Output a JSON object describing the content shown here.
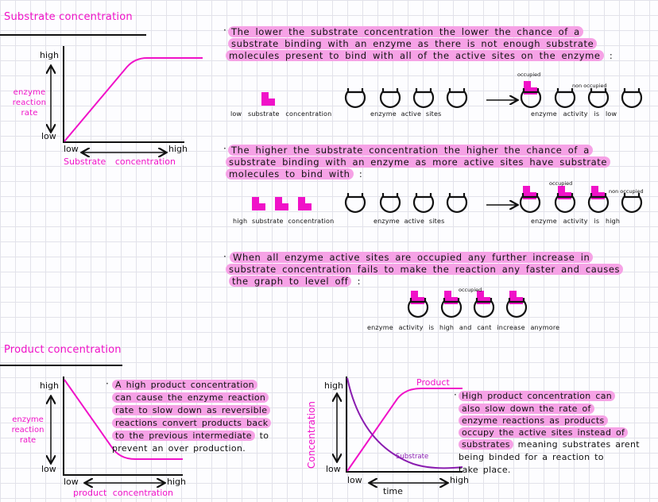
{
  "colors": {
    "accent": "#f012c8",
    "highlight": "#f6a2e6",
    "substrate_curve": "#8a1db0"
  },
  "section1": {
    "title": "Substrate concentration",
    "graph": {
      "y_high": "high",
      "y_low": "low",
      "y_label": [
        "enzyme",
        "reaction",
        "rate"
      ],
      "x_low": "low",
      "x_high": "high",
      "x_label": "Substrate concentration"
    },
    "para1": [
      "The lower the substrate concentration the lower the chance of a",
      "substrate binding with an enzyme as there is not enough substrate",
      "molecules present to bind with all of the active sites on the enzyme"
    ],
    "para1_end": ":",
    "row1": {
      "left_label": "low substrate concentration",
      "middle_label": "enzyme active sites",
      "right_label": "enzyme activity is low",
      "occupied_label": "occupied",
      "non_occupied_label": "non occupied",
      "substrate_count": 1,
      "result_occupied": [
        true,
        false,
        false,
        false
      ]
    },
    "para2": [
      "The higher the substrate concentration the higher the chance of a",
      "substrate binding with an enzyme as more active sites have substrate",
      "molecules to bind with"
    ],
    "para2_end": ":",
    "row2": {
      "left_label": "high substrate concentration",
      "middle_label": "enzyme active sites",
      "right_label": "enzyme activity is high",
      "occupied_label": "occupied",
      "non_occupied_label": "non occupied",
      "substrate_count": 3,
      "result_occupied": [
        true,
        true,
        true,
        false
      ]
    },
    "para3": [
      "When all enzyme active sites are occupied any further increase in",
      "substrate concentration fails to make the reaction any faster and causes",
      "the graph to level off"
    ],
    "para3_end": ":",
    "row3": {
      "occupied_label": "occupied",
      "label": "enzyme activity is high and cant increase anymore",
      "result_occupied": [
        true,
        true,
        true,
        true
      ]
    }
  },
  "section2": {
    "title": "Product concentration",
    "graph1": {
      "y_high": "high",
      "y_low": "low",
      "y_label": [
        "enzyme",
        "reaction",
        "rate"
      ],
      "x_low": "low",
      "x_high": "high",
      "x_label": "product concentration"
    },
    "para4_hl": [
      "A high product concentration",
      "can cause the enzyme reaction",
      "rate to slow down as reversible",
      "reactions convert products back",
      "to the previous intermediate"
    ],
    "para4_rest": [
      " to",
      "prevent an over production."
    ],
    "graph2": {
      "y_high": "high",
      "y_low": "low",
      "y_label": "Concentration",
      "x_low": "low",
      "x_high": "high",
      "x_label": "time",
      "series": [
        "Product",
        "Substrate"
      ]
    },
    "para5_hl": [
      "High product concentration can",
      "also slow down the rate of",
      "enzyme reactions as products",
      "occupy the active sites instead of",
      "substrates"
    ],
    "para5_rest": [
      " meaning substrates arent",
      "being binded for a reaction to",
      "take place."
    ]
  }
}
